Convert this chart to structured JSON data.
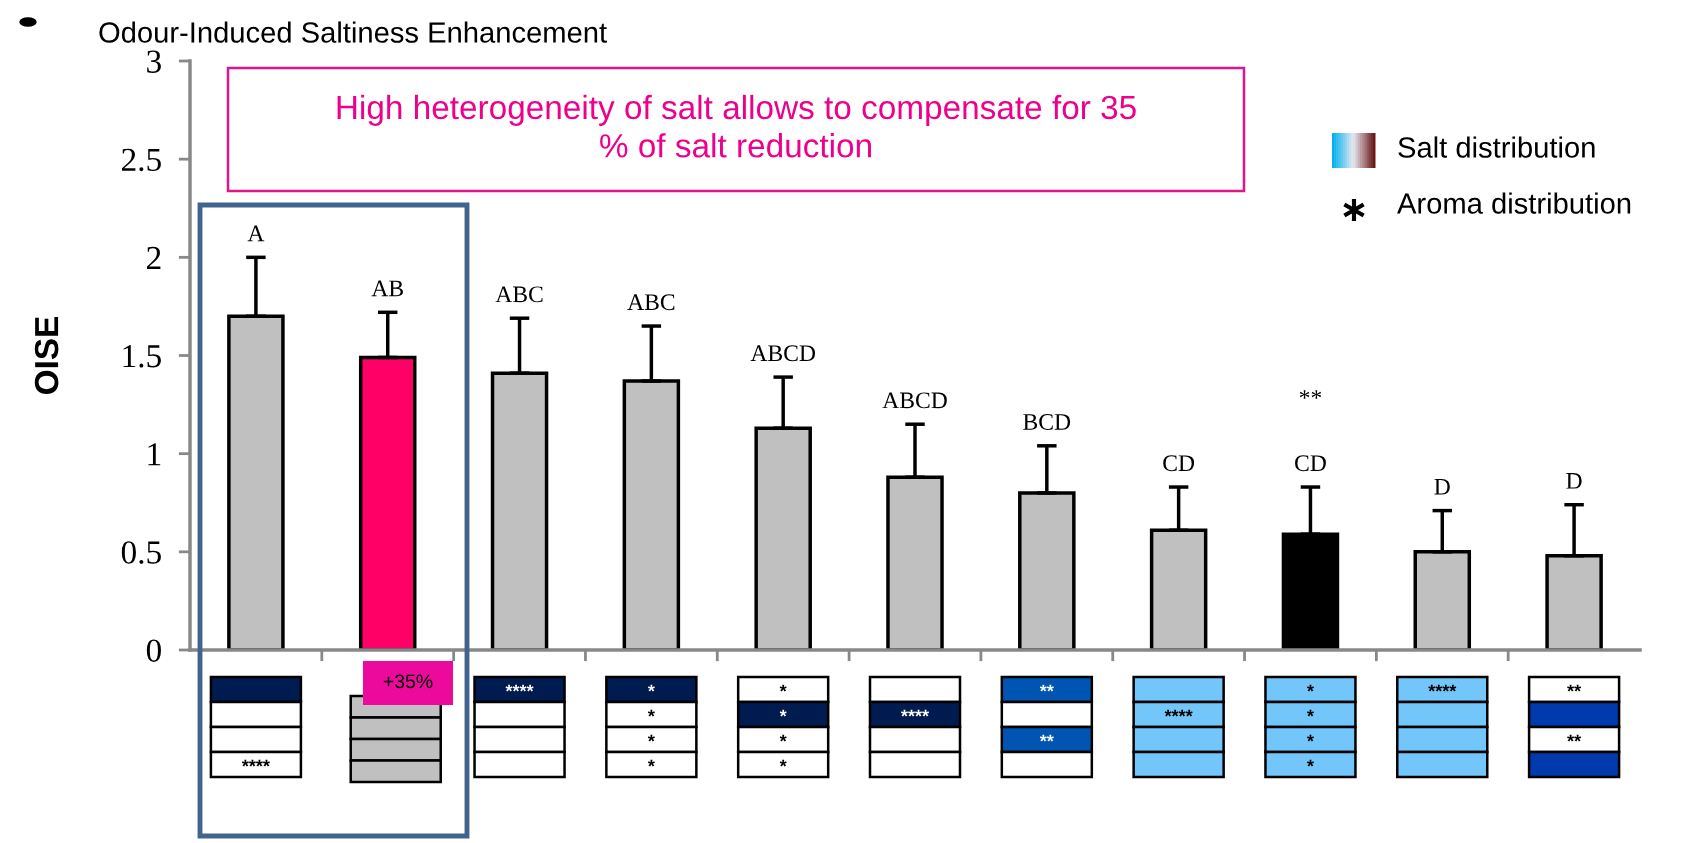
{
  "chart_data": {
    "type": "bar",
    "title": "Odour-Induced Saltiness Enhancement",
    "ylabel": "OISE",
    "categories": [
      null,
      null,
      null,
      null,
      null,
      null,
      null,
      null,
      null,
      null,
      null
    ],
    "values": [
      1.7,
      1.49,
      1.41,
      1.37,
      1.13,
      0.88,
      0.8,
      0.61,
      0.59,
      0.5,
      0.48
    ],
    "colors": [
      "#c0c0c0",
      "#ff0066",
      "#c0c0c0",
      "#c0c0c0",
      "#c0c0c0",
      "#c0c0c0",
      "#c0c0c0",
      "#c0c0c0",
      "#000000",
      "#c0c0c0",
      "#c0c0c0"
    ],
    "errors": [
      [
        1.7,
        2.0
      ],
      [
        1.49,
        1.72
      ],
      [
        1.41,
        1.69
      ],
      [
        1.37,
        1.65
      ],
      [
        1.13,
        1.39
      ],
      [
        0.88,
        1.15
      ],
      [
        0.8,
        1.04
      ],
      [
        0.61,
        0.83
      ],
      [
        0.59,
        0.83
      ],
      [
        0.5,
        0.71
      ],
      [
        0.48,
        0.74
      ]
    ],
    "ylim": [
      0,
      3
    ],
    "yticks": [
      0,
      0.5,
      1,
      1.5,
      2,
      2.5,
      3
    ],
    "grid": false,
    "annotations": [
      "High heterogeneity of salt allows to compensate for 35\n% of salt reduction",
      "Salt distribution",
      "Aroma distribution",
      "A",
      "AB",
      "ABC",
      "ABC",
      "ABCD",
      "ABCD",
      "BCD",
      "CD",
      "CD",
      "D",
      "D",
      "**",
      "+35%",
      "****",
      "****",
      "*",
      "*",
      "*",
      "*",
      "*",
      "*",
      "*",
      "*",
      "****",
      "**",
      "**",
      "****",
      "*",
      "*",
      "*",
      "*",
      "****",
      "**",
      "**"
    ]
  }
}
